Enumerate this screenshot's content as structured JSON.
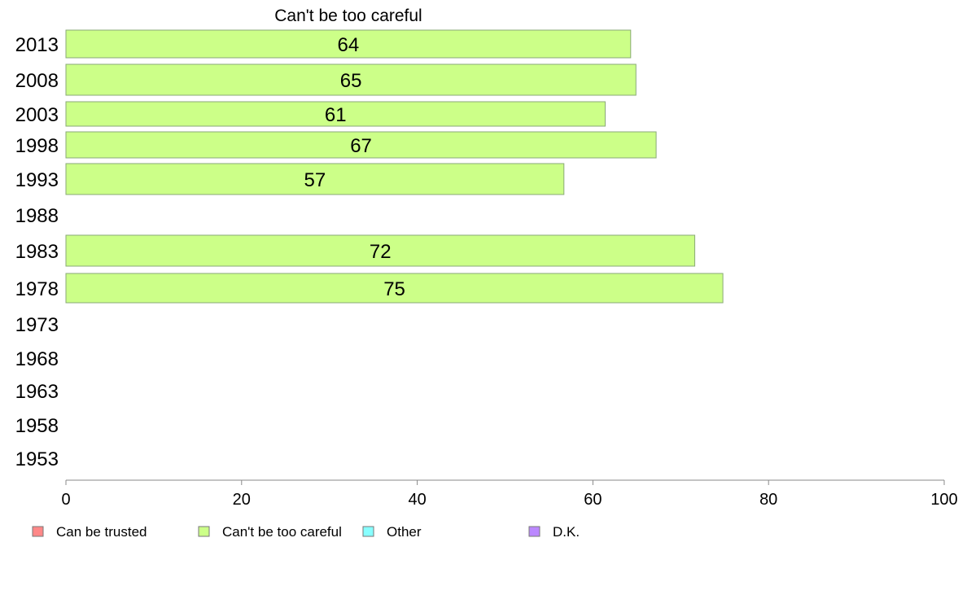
{
  "chart_data": {
    "type": "bar",
    "orientation": "horizontal",
    "title": "Can't be too careful",
    "categories": [
      "2013",
      "2008",
      "2003",
      "1998",
      "1993",
      "1988",
      "1983",
      "1978",
      "1973",
      "1968",
      "1963",
      "1958",
      "1953"
    ],
    "series": [
      {
        "name": "Can't be too careful",
        "color": "#ccff88",
        "values": [
          64.3,
          64.9,
          61.4,
          67.2,
          56.7,
          null,
          71.6,
          74.8,
          null,
          null,
          null,
          null,
          null
        ],
        "labels": [
          "64",
          "65",
          "61",
          "67",
          "57",
          "",
          "72",
          "75",
          "",
          "",
          "",
          "",
          ""
        ]
      }
    ],
    "xlim": [
      0,
      100
    ],
    "xticks": [
      0,
      20,
      40,
      60,
      80,
      100
    ],
    "xlabel": "",
    "ylabel": "",
    "grid": false,
    "legend": {
      "placement": "bottom",
      "items": [
        {
          "name": "Can be trusted",
          "color": "#ff8888"
        },
        {
          "name": "Can't be too careful",
          "color": "#ccff88"
        },
        {
          "name": "Other",
          "color": "#88ffff"
        },
        {
          "name": "D.K.",
          "color": "#bb88ff"
        }
      ]
    }
  }
}
